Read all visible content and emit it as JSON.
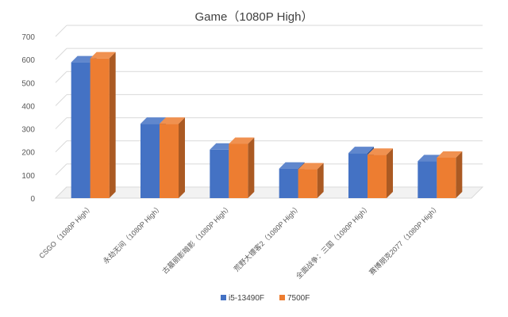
{
  "chart_data": {
    "type": "bar",
    "title": "Game（1080P High）",
    "xlabel": "",
    "ylabel": "",
    "ylim": [
      0,
      700
    ],
    "yticks": [
      0,
      100,
      200,
      300,
      400,
      500,
      600,
      700
    ],
    "grid": true,
    "legend_position": "bottom",
    "categories": [
      "CSGO（1080P High）",
      "永劫无间（1080P High）",
      "古墓丽影暗影（1080P High）",
      "荒野大镖客2（1080P High）",
      "全面战争：三国（1080P High）",
      "赛博朋克2077（1080P High）"
    ],
    "series": [
      {
        "name": "i5-13490F",
        "color": "#4472c4",
        "values": [
          588,
          322,
          210,
          128,
          195,
          160
        ]
      },
      {
        "name": "7500F",
        "color": "#ed7d31",
        "values": [
          605,
          322,
          235,
          125,
          188,
          175
        ]
      }
    ]
  }
}
